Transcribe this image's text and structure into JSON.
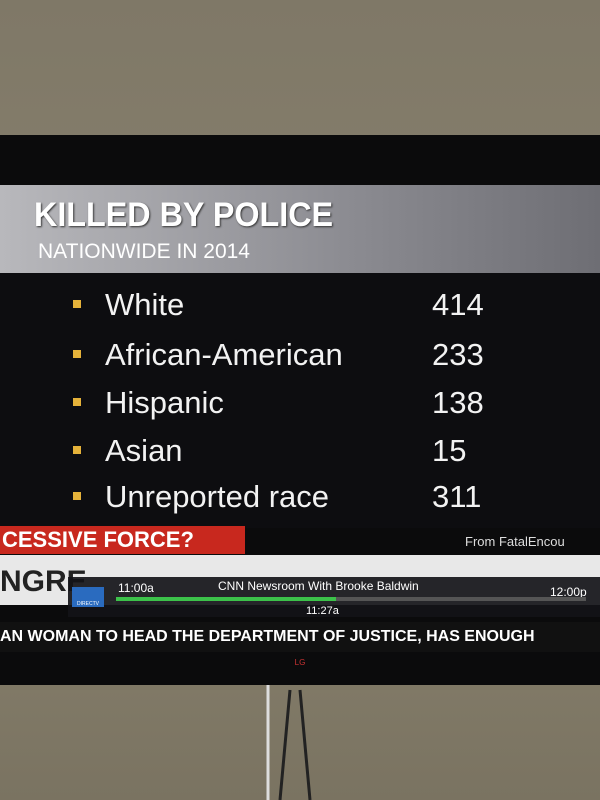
{
  "header": {
    "title": "KILLED BY POLICE",
    "subtitle": "NATIONWIDE IN 2014"
  },
  "list": {
    "items": [
      {
        "label": "White",
        "value": 414
      },
      {
        "label": "African-American",
        "value": 233
      },
      {
        "label": "Hispanic",
        "value": 138
      },
      {
        "label": "Asian",
        "value": 15
      },
      {
        "label": "Unreported race",
        "value": 311
      }
    ]
  },
  "banner": {
    "text": "CESSIVE FORCE?",
    "source": "From FatalEncou"
  },
  "guide": {
    "channel_fragment": "NGRE",
    "logo": "DIRECTV",
    "start": "11:00a",
    "program": "CNN Newsroom With Brooke Baldwin",
    "end": "12:00p",
    "now": "11:27a"
  },
  "ticker": {
    "text": "AN WOMAN TO HEAD THE DEPARTMENT OF JUSTICE, HAS ENOUGH"
  },
  "tv": {
    "brand": "LG"
  }
}
